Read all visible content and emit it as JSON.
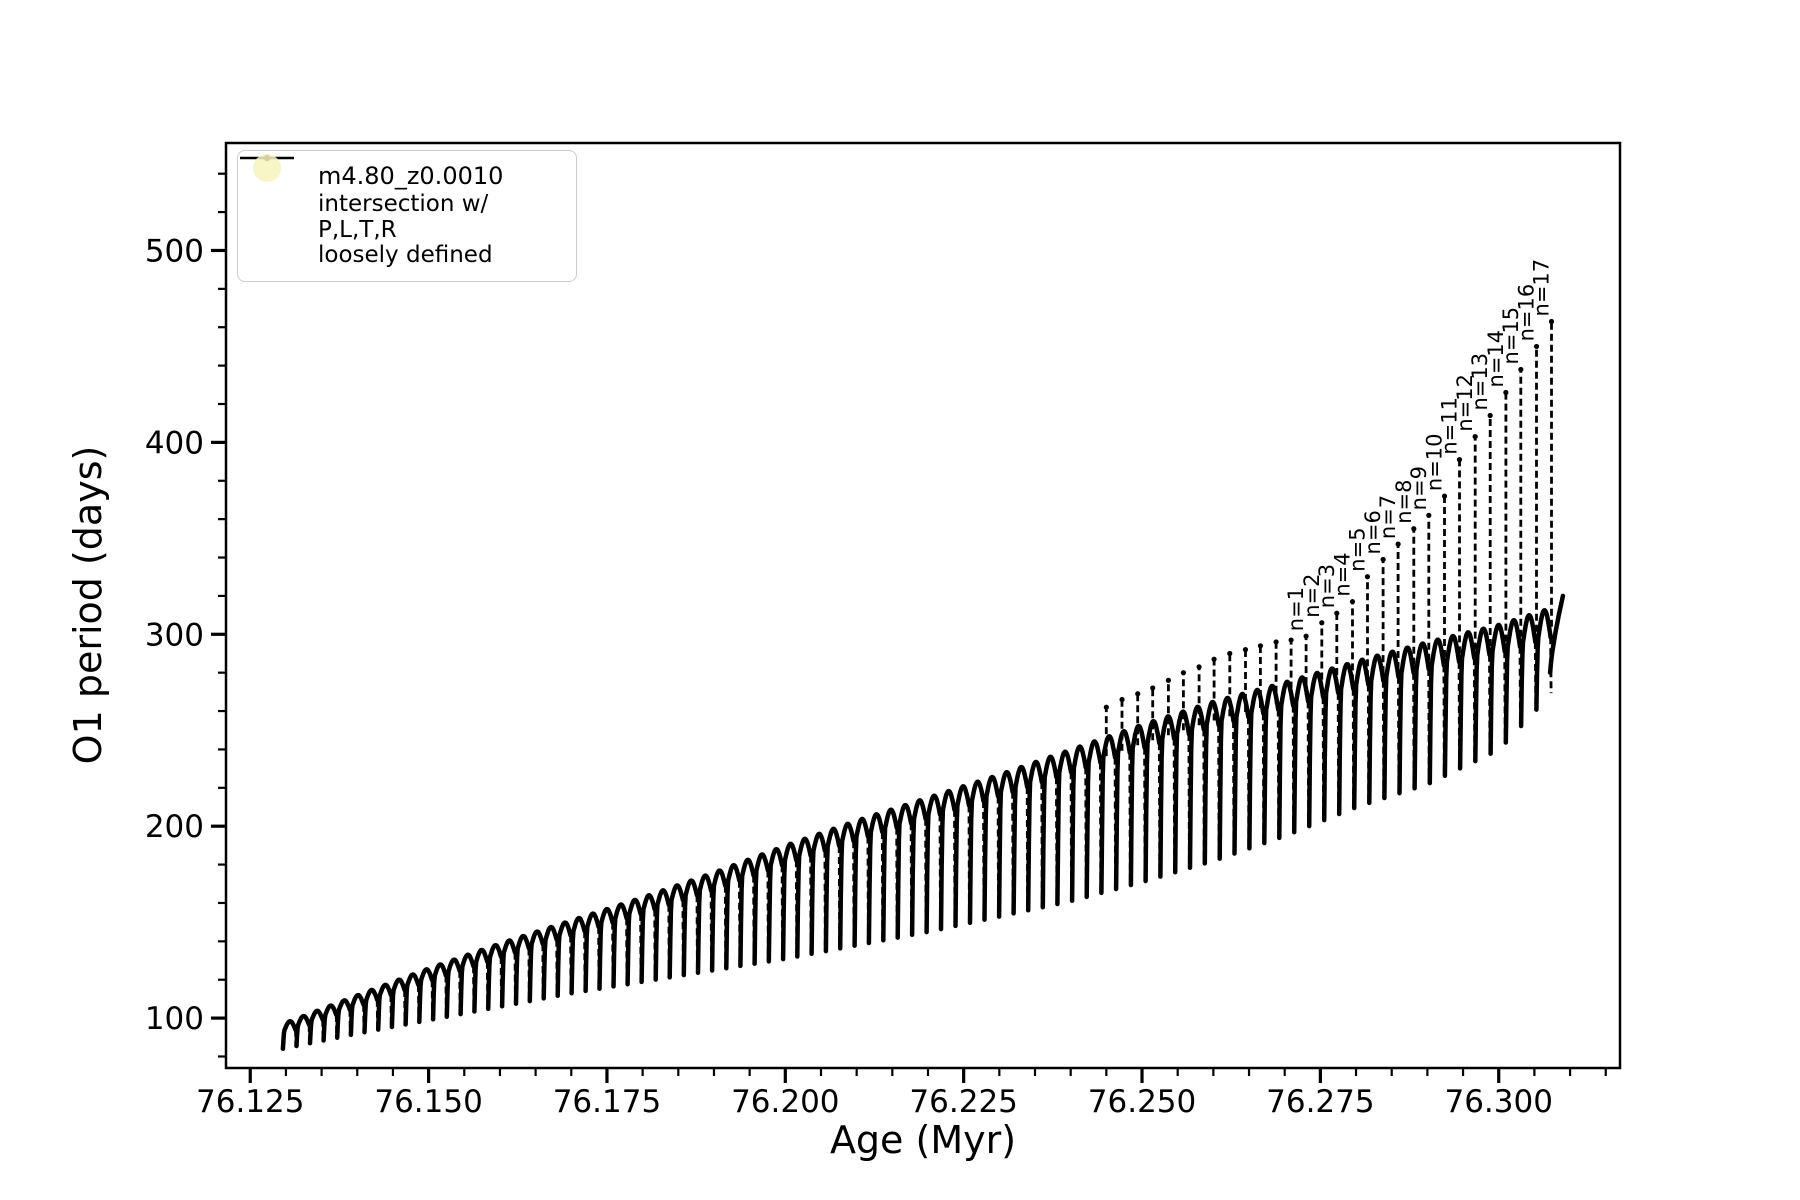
{
  "figure": {
    "background": "#ffffff",
    "line_color": "#000000"
  },
  "axes": {
    "xlabel": "Age (Myr)",
    "ylabel": "O1 period (days)",
    "xlim": [
      76.1216,
      76.317
    ],
    "ylim": [
      74,
      556
    ],
    "x_ticks": [
      76.125,
      76.15,
      76.175,
      76.2,
      76.225,
      76.25,
      76.275,
      76.3
    ],
    "x_tick_labels": [
      "76.125",
      "76.150",
      "76.175",
      "76.200",
      "76.225",
      "76.250",
      "76.275",
      "76.300"
    ],
    "y_ticks": [
      100,
      200,
      300,
      400,
      500
    ],
    "y_tick_labels": [
      "100",
      "200",
      "300",
      "400",
      "500"
    ],
    "x_minor_step": 0.005,
    "y_minor_step": 20
  },
  "legend": {
    "series_label": "m4.80_z0.0010",
    "intersection_label_lines": [
      "intersection w/ P,L,T,R",
      "loosely defined"
    ],
    "intersection_marker_color": "#f7f3bc",
    "series_color": "#000000"
  },
  "chart_data": {
    "type": "line",
    "series_name": "m4.80_z0.0010",
    "xlabel": "Age (Myr)",
    "ylabel": "O1 period (days)",
    "age_range": [
      76.1295,
      76.3075
    ],
    "cycle_period_myr": {
      "start": 0.0019,
      "end": 0.00215
    },
    "envelope": {
      "age": [
        76.1295,
        76.14,
        76.15,
        76.16,
        76.17,
        76.18,
        76.19,
        76.2,
        76.21,
        76.22,
        76.23,
        76.24,
        76.25,
        76.26,
        76.27,
        76.28,
        76.29,
        76.3,
        76.3075,
        76.309
      ],
      "upper": [
        97,
        112,
        126,
        139,
        151,
        163,
        176,
        190,
        203,
        215,
        227,
        240,
        253,
        265,
        275,
        286,
        296,
        305,
        314,
        320
      ],
      "lower": [
        84,
        92,
        99,
        106,
        113,
        119,
        125,
        131,
        138,
        145,
        153,
        161,
        171,
        182,
        195,
        210,
        222,
        240,
        270,
        280
      ]
    },
    "final_tail": {
      "age_start": 76.3072,
      "age_end": 76.309,
      "period_start": 280,
      "period_end": 320
    },
    "pulse_spikes": {
      "ages": [
        76.245,
        76.2472,
        76.2494,
        76.2515,
        76.2537,
        76.2558,
        76.258,
        76.2601,
        76.2623,
        76.2645,
        76.2666,
        76.2688,
        76.2709,
        76.273,
        76.2752,
        76.2773,
        76.2795,
        76.2816,
        76.2838,
        76.2859,
        76.2881,
        76.2902,
        76.2924,
        76.2945,
        76.2967,
        76.2988,
        76.301,
        76.3031,
        76.3053,
        76.3074
      ],
      "tops": [
        262,
        266,
        269,
        272,
        276,
        280,
        283,
        287,
        290,
        292,
        294,
        296,
        297,
        299,
        306,
        311,
        317,
        330,
        339,
        347,
        355,
        362,
        372,
        391,
        403,
        414,
        426,
        438,
        450,
        463
      ],
      "labels": [
        "",
        "",
        "",
        "",
        "",
        "",
        "",
        "",
        "",
        "",
        "",
        "",
        "",
        "n=1",
        "n=2",
        "n=3",
        "n=4",
        "n=5",
        "n=6",
        "n=7",
        "n=8",
        "n=9",
        "n=10",
        "n=11",
        "n=12",
        "n=13",
        "n=14",
        "n=15",
        "n=16",
        "n=17"
      ]
    }
  }
}
